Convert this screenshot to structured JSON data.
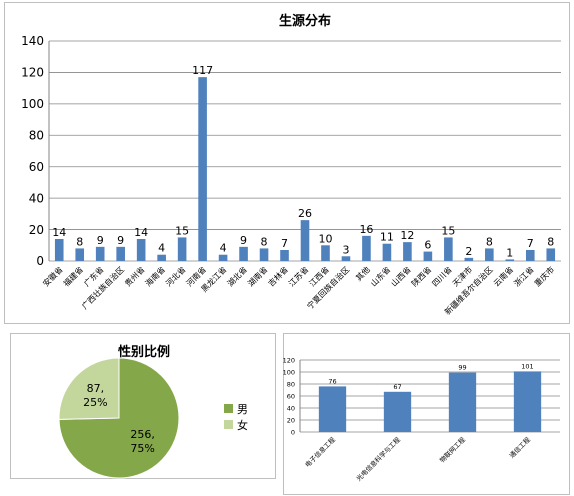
{
  "colors": {
    "bar": "#4f81bd",
    "male": "#84a74a",
    "female": "#c3d69b",
    "grid": "#868686",
    "axis": "#868686",
    "text": "#000000"
  },
  "chart_data": [
    {
      "type": "bar",
      "title": "生源分布",
      "categories": [
        "安徽省",
        "福建省",
        "广东省",
        "广西壮族自治区",
        "贵州省",
        "海南省",
        "河北省",
        "河南省",
        "黑龙江省",
        "湖北省",
        "湖南省",
        "吉林省",
        "江苏省",
        "江西省",
        "宁夏回族自治区",
        "其他",
        "山东省",
        "山西省",
        "陕西省",
        "四川省",
        "天津市",
        "新疆维吾尔自治区",
        "云南省",
        "浙江省",
        "重庆市"
      ],
      "values": [
        14,
        8,
        9,
        9,
        14,
        4,
        15,
        117,
        4,
        9,
        8,
        7,
        26,
        10,
        3,
        16,
        11,
        12,
        6,
        15,
        2,
        8,
        1,
        7,
        8
      ],
      "ylim": [
        0,
        140
      ],
      "yticks": [
        0,
        20,
        40,
        60,
        80,
        100,
        120,
        140
      ],
      "grid": true,
      "data_labels": true
    },
    {
      "type": "pie",
      "title": "性别比例",
      "categories": [
        "男",
        "女"
      ],
      "values": [
        256,
        87
      ],
      "slice_labels": [
        "256,\n75%",
        "87,\n25%"
      ],
      "legend": "right"
    },
    {
      "type": "bar",
      "title": "",
      "categories": [
        "电子信息工程",
        "光电信息科学与工程",
        "物联网工程",
        "通信工程"
      ],
      "values": [
        76,
        67,
        99,
        101
      ],
      "ylim": [
        0,
        120
      ],
      "yticks": [
        0,
        20,
        40,
        60,
        80,
        100,
        120
      ],
      "grid": true,
      "data_labels": true
    }
  ]
}
